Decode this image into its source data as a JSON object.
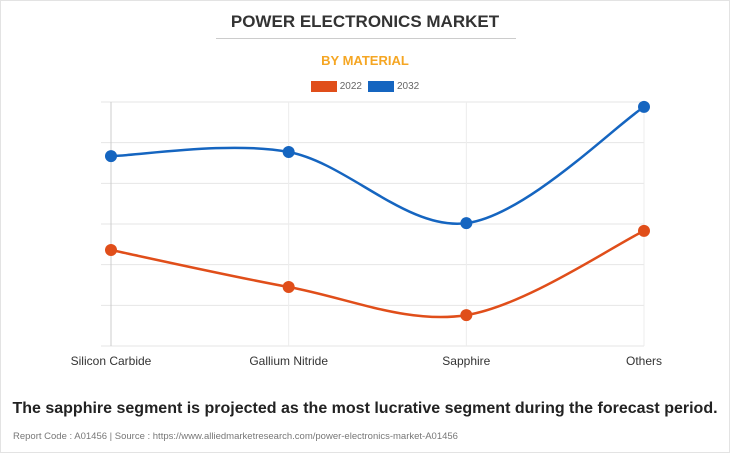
{
  "chart_data": {
    "type": "line",
    "title": "POWER ELECTRONICS MARKET",
    "subtitle": "BY MATERIAL",
    "categories": [
      "Silicon Carbide",
      "Gallium Nitride",
      "Sapphire",
      "Others"
    ],
    "series": [
      {
        "name": "2022",
        "color": "#e04e1a",
        "values": [
          2.36,
          1.45,
          0.76,
          2.83
        ]
      },
      {
        "name": "2032",
        "color": "#1565c0",
        "values": [
          4.67,
          4.77,
          3.02,
          5.88
        ]
      }
    ],
    "ylim": [
      0,
      6
    ],
    "y_axis_labels_shown": false,
    "grid": true,
    "smooth": true,
    "legend_position": "top-center"
  },
  "note": "The sapphire segment is projected as the most lucrative segment during the forecast period.",
  "footer": "Report Code : A01456  |  Source : https://www.alliedmarketresearch.com/power-electronics-market-A01456"
}
